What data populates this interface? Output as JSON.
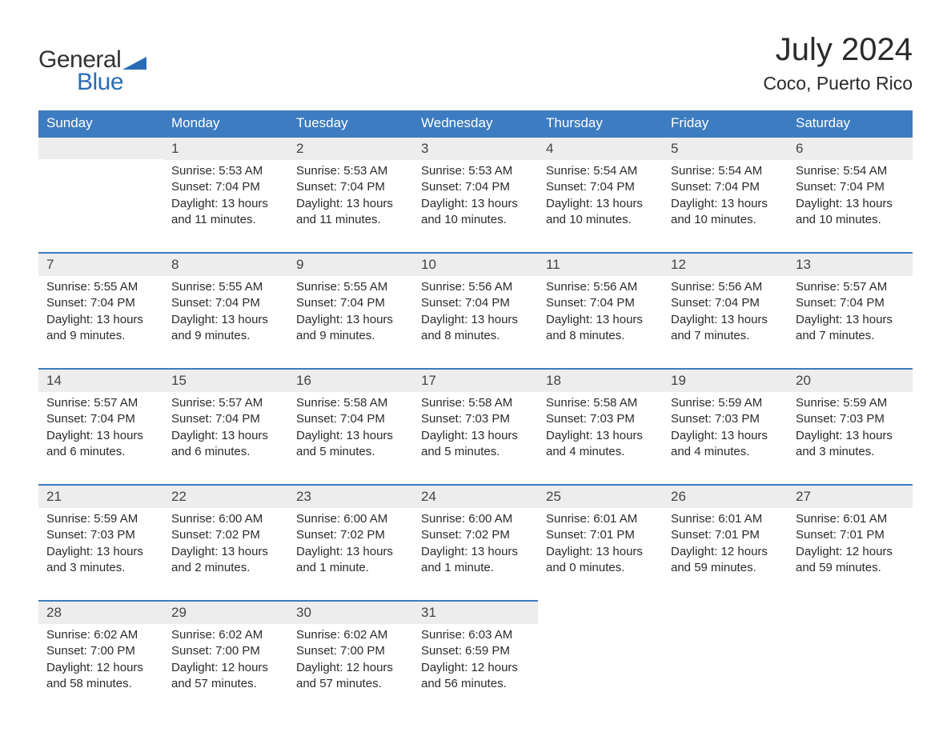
{
  "logo": {
    "text_general": "General",
    "text_blue": "Blue"
  },
  "title": "July 2024",
  "location": "Coco, Puerto Rico",
  "colors": {
    "header_bg": "#3d7cc0",
    "header_text": "#ffffff",
    "daynum_bg": "#ededed",
    "daynum_border": "#3d7cc0",
    "text": "#2b2b2b",
    "logo_gray": "#333333",
    "logo_blue": "#2a6db5"
  },
  "day_headers": [
    "Sunday",
    "Monday",
    "Tuesday",
    "Wednesday",
    "Thursday",
    "Friday",
    "Saturday"
  ],
  "weeks": [
    [
      {
        "day": "",
        "sunrise": "",
        "sunset": "",
        "daylight": ""
      },
      {
        "day": "1",
        "sunrise": "5:53 AM",
        "sunset": "7:04 PM",
        "daylight": "13 hours and 11 minutes."
      },
      {
        "day": "2",
        "sunrise": "5:53 AM",
        "sunset": "7:04 PM",
        "daylight": "13 hours and 11 minutes."
      },
      {
        "day": "3",
        "sunrise": "5:53 AM",
        "sunset": "7:04 PM",
        "daylight": "13 hours and 10 minutes."
      },
      {
        "day": "4",
        "sunrise": "5:54 AM",
        "sunset": "7:04 PM",
        "daylight": "13 hours and 10 minutes."
      },
      {
        "day": "5",
        "sunrise": "5:54 AM",
        "sunset": "7:04 PM",
        "daylight": "13 hours and 10 minutes."
      },
      {
        "day": "6",
        "sunrise": "5:54 AM",
        "sunset": "7:04 PM",
        "daylight": "13 hours and 10 minutes."
      }
    ],
    [
      {
        "day": "7",
        "sunrise": "5:55 AM",
        "sunset": "7:04 PM",
        "daylight": "13 hours and 9 minutes."
      },
      {
        "day": "8",
        "sunrise": "5:55 AM",
        "sunset": "7:04 PM",
        "daylight": "13 hours and 9 minutes."
      },
      {
        "day": "9",
        "sunrise": "5:55 AM",
        "sunset": "7:04 PM",
        "daylight": "13 hours and 9 minutes."
      },
      {
        "day": "10",
        "sunrise": "5:56 AM",
        "sunset": "7:04 PM",
        "daylight": "13 hours and 8 minutes."
      },
      {
        "day": "11",
        "sunrise": "5:56 AM",
        "sunset": "7:04 PM",
        "daylight": "13 hours and 8 minutes."
      },
      {
        "day": "12",
        "sunrise": "5:56 AM",
        "sunset": "7:04 PM",
        "daylight": "13 hours and 7 minutes."
      },
      {
        "day": "13",
        "sunrise": "5:57 AM",
        "sunset": "7:04 PM",
        "daylight": "13 hours and 7 minutes."
      }
    ],
    [
      {
        "day": "14",
        "sunrise": "5:57 AM",
        "sunset": "7:04 PM",
        "daylight": "13 hours and 6 minutes."
      },
      {
        "day": "15",
        "sunrise": "5:57 AM",
        "sunset": "7:04 PM",
        "daylight": "13 hours and 6 minutes."
      },
      {
        "day": "16",
        "sunrise": "5:58 AM",
        "sunset": "7:04 PM",
        "daylight": "13 hours and 5 minutes."
      },
      {
        "day": "17",
        "sunrise": "5:58 AM",
        "sunset": "7:03 PM",
        "daylight": "13 hours and 5 minutes."
      },
      {
        "day": "18",
        "sunrise": "5:58 AM",
        "sunset": "7:03 PM",
        "daylight": "13 hours and 4 minutes."
      },
      {
        "day": "19",
        "sunrise": "5:59 AM",
        "sunset": "7:03 PM",
        "daylight": "13 hours and 4 minutes."
      },
      {
        "day": "20",
        "sunrise": "5:59 AM",
        "sunset": "7:03 PM",
        "daylight": "13 hours and 3 minutes."
      }
    ],
    [
      {
        "day": "21",
        "sunrise": "5:59 AM",
        "sunset": "7:03 PM",
        "daylight": "13 hours and 3 minutes."
      },
      {
        "day": "22",
        "sunrise": "6:00 AM",
        "sunset": "7:02 PM",
        "daylight": "13 hours and 2 minutes."
      },
      {
        "day": "23",
        "sunrise": "6:00 AM",
        "sunset": "7:02 PM",
        "daylight": "13 hours and 1 minute."
      },
      {
        "day": "24",
        "sunrise": "6:00 AM",
        "sunset": "7:02 PM",
        "daylight": "13 hours and 1 minute."
      },
      {
        "day": "25",
        "sunrise": "6:01 AM",
        "sunset": "7:01 PM",
        "daylight": "13 hours and 0 minutes."
      },
      {
        "day": "26",
        "sunrise": "6:01 AM",
        "sunset": "7:01 PM",
        "daylight": "12 hours and 59 minutes."
      },
      {
        "day": "27",
        "sunrise": "6:01 AM",
        "sunset": "7:01 PM",
        "daylight": "12 hours and 59 minutes."
      }
    ],
    [
      {
        "day": "28",
        "sunrise": "6:02 AM",
        "sunset": "7:00 PM",
        "daylight": "12 hours and 58 minutes."
      },
      {
        "day": "29",
        "sunrise": "6:02 AM",
        "sunset": "7:00 PM",
        "daylight": "12 hours and 57 minutes."
      },
      {
        "day": "30",
        "sunrise": "6:02 AM",
        "sunset": "7:00 PM",
        "daylight": "12 hours and 57 minutes."
      },
      {
        "day": "31",
        "sunrise": "6:03 AM",
        "sunset": "6:59 PM",
        "daylight": "12 hours and 56 minutes."
      },
      {
        "day": "",
        "sunrise": "",
        "sunset": "",
        "daylight": ""
      },
      {
        "day": "",
        "sunrise": "",
        "sunset": "",
        "daylight": ""
      },
      {
        "day": "",
        "sunrise": "",
        "sunset": "",
        "daylight": ""
      }
    ]
  ],
  "labels": {
    "sunrise": "Sunrise:",
    "sunset": "Sunset:",
    "daylight": "Daylight:"
  }
}
